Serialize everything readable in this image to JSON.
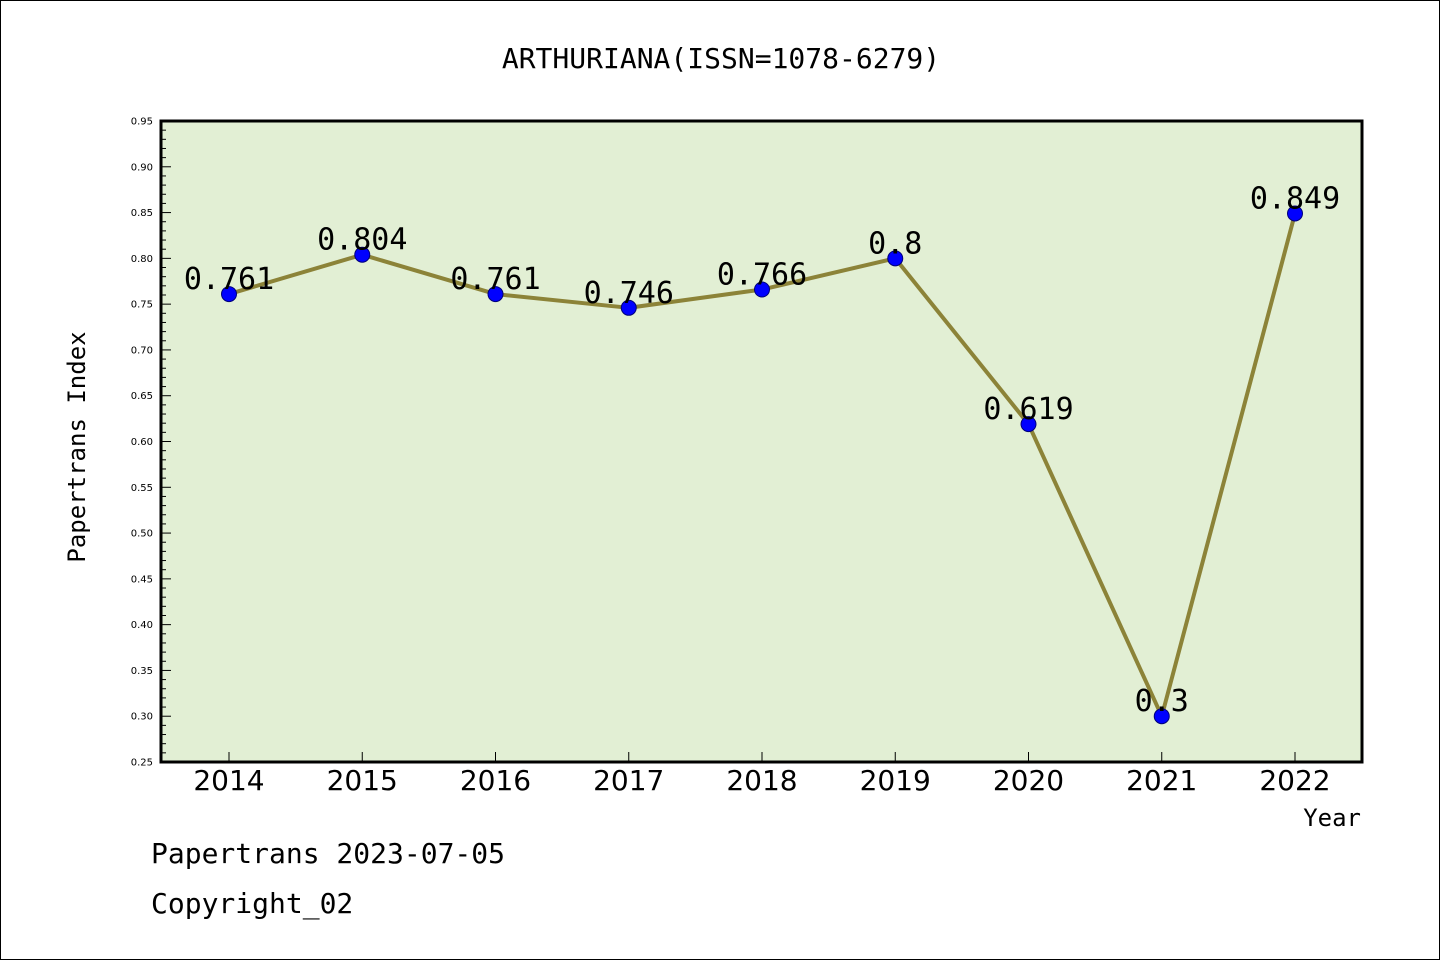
{
  "chart_data": {
    "type": "line",
    "title": "ARTHURIANA(ISSN=1078-6279)",
    "xlabel": "Year",
    "ylabel": "Papertrans Index",
    "categories": [
      "2014",
      "2015",
      "2016",
      "2017",
      "2018",
      "2019",
      "2020",
      "2021",
      "2022"
    ],
    "series": [
      {
        "values": [
          0.761,
          0.804,
          0.761,
          0.746,
          0.766,
          0.8,
          0.619,
          0.3,
          0.849
        ],
        "labels": [
          "0.761",
          "0.804",
          "0.761",
          "0.746",
          "0.766",
          "0.8",
          "0.619",
          "0.3",
          "0.849"
        ]
      }
    ],
    "ylim": [
      0.25,
      0.95
    ],
    "yticks": [
      "0.25",
      "0.30",
      "0.35",
      "0.40",
      "0.45",
      "0.50",
      "0.55",
      "0.60",
      "0.65",
      "0.70",
      "0.75",
      "0.80",
      "0.85",
      "0.90",
      "0.95"
    ],
    "grid": false,
    "colors": {
      "plot_background": "#e2efd4",
      "line": "#8c8338",
      "marker": "#0000ff"
    }
  },
  "footer": {
    "line1": "Papertrans 2023-07-05",
    "line2": "Copyright_02"
  }
}
